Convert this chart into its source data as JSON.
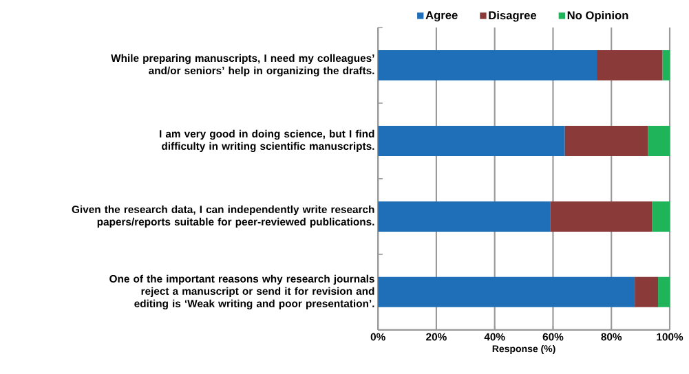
{
  "chart_data": {
    "type": "bar",
    "orientation": "horizontal",
    "stacked": true,
    "categories": [
      "While preparing manuscripts, I need my colleagues’ and/or seniors’ help in organizing the drafts.",
      "I am very good in doing science, but I find difficulty in writing scientific manuscripts.",
      "Given the research data, I can independently write research papers/reports suitable for peer-reviewed publications.",
      "One of the important reasons why research journals reject a manuscript or send it for revision and editing is ‘Weak writing and poor presentation’."
    ],
    "series": [
      {
        "name": "Agree",
        "color": "#1f6fb8",
        "values": [
          75,
          64,
          59,
          88
        ]
      },
      {
        "name": "Disagree",
        "color": "#8b3a3a",
        "values": [
          22.5,
          28.5,
          35,
          8
        ]
      },
      {
        "name": "No Opinion",
        "color": "#1fb35a",
        "values": [
          2.5,
          7.5,
          6,
          4
        ]
      }
    ],
    "xlabel": "Response (%)",
    "xlim": [
      0,
      100
    ],
    "xticks": [
      {
        "value": 0,
        "label": "0%"
      },
      {
        "value": 20,
        "label": "20%"
      },
      {
        "value": 40,
        "label": "40%"
      },
      {
        "value": 60,
        "label": "60%"
      },
      {
        "value": 80,
        "label": "80%"
      },
      {
        "value": 100,
        "label": "100%"
      }
    ],
    "grid": "x",
    "legend": "top"
  }
}
